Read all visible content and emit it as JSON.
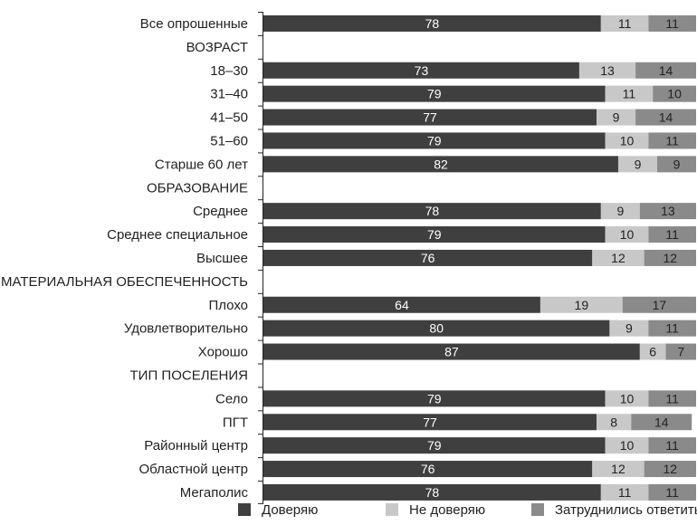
{
  "chart_data": {
    "type": "bar",
    "orientation": "horizontal",
    "stacked": true,
    "percent": true,
    "categories": [
      "Все опрошенные",
      "ВОЗРАСТ",
      "18–30",
      "31–40",
      "41–50",
      "51–60",
      "Старше 60 лет",
      "ОБРАЗОВАНИЕ",
      "Среднее",
      "Среднее специальное",
      "Высшее",
      "МАТЕРИАЛЬНАЯ ОБЕСПЕЧЕННОСТЬ",
      "Плохо",
      "Удовлетворительно",
      "Хорошо",
      "ТИП ПОСЕЛЕНИЯ",
      "Село",
      "ПГТ",
      "Районный центр",
      "Областной центр",
      "Мегаполис"
    ],
    "series": [
      {
        "name": "Доверяю",
        "color": "#3f3f3f",
        "values": [
          78,
          null,
          73,
          79,
          77,
          79,
          82,
          null,
          78,
          79,
          76,
          null,
          64,
          80,
          87,
          null,
          79,
          77,
          79,
          76,
          78
        ]
      },
      {
        "name": "Не доверяю",
        "color": "#c8c8c8",
        "values": [
          11,
          null,
          13,
          11,
          9,
          10,
          9,
          null,
          9,
          10,
          12,
          null,
          19,
          9,
          6,
          null,
          10,
          8,
          10,
          12,
          11
        ]
      },
      {
        "name": "Затруднились ответить",
        "color": "#8a8a8a",
        "values": [
          11,
          null,
          14,
          10,
          14,
          11,
          9,
          null,
          13,
          11,
          12,
          null,
          17,
          11,
          7,
          null,
          11,
          14,
          11,
          12,
          11
        ]
      }
    ],
    "xlim": [
      0,
      100
    ],
    "legend_position": "bottom",
    "grid": false
  }
}
